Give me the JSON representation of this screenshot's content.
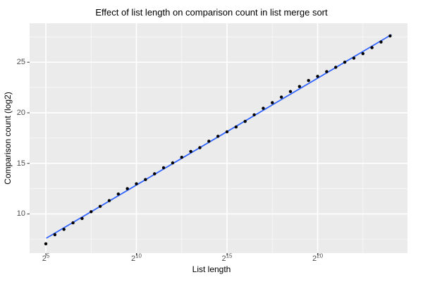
{
  "chart_data": {
    "type": "scatter",
    "title": "Effect of list length on comparison count in list merge sort",
    "x_axis": {
      "label": "List length",
      "scale": "log2",
      "tick_base": "2",
      "tick_exponents": [
        5,
        10,
        15,
        20
      ],
      "minor_exponents": [
        7.5,
        12.5,
        17.5,
        22.5
      ],
      "range_log2": [
        4.105,
        24.96
      ]
    },
    "y_axis": {
      "label": "Comparison count (log2)",
      "ticks": [
        10,
        15,
        20,
        25
      ],
      "minor_ticks": [
        7.5,
        12.5,
        17.5,
        22.5,
        27.5
      ],
      "range": [
        6.13,
        28.85
      ]
    },
    "points": {
      "x_log2": [
        5,
        5.5,
        6,
        6.5,
        7,
        7.5,
        8,
        8.5,
        9,
        9.5,
        10,
        10.5,
        11,
        11.5,
        12,
        12.5,
        13,
        13.5,
        14,
        14.5,
        15,
        15.5,
        16,
        16.5,
        17,
        17.5,
        18,
        18.5,
        19,
        19.5,
        20,
        20.5,
        21,
        21.5,
        22,
        22.5,
        23,
        23.5,
        24
      ],
      "y": [
        7.05,
        7.95,
        8.48,
        9.12,
        9.55,
        10.22,
        10.75,
        11.32,
        11.97,
        12.5,
        12.98,
        13.4,
        13.97,
        14.57,
        15.05,
        15.6,
        16.18,
        16.55,
        17.19,
        17.68,
        18.12,
        18.6,
        19.15,
        19.8,
        20.45,
        21.0,
        21.55,
        22.1,
        22.6,
        23.19,
        23.6,
        24.07,
        24.5,
        25.0,
        25.4,
        25.85,
        26.44,
        27.0,
        27.6
      ]
    },
    "fit_line": {
      "x1_log2": 5.05,
      "y1": 7.63,
      "x2_log2": 24.05,
      "y2": 27.7
    },
    "legend": null,
    "grid": "major-and-minor",
    "colors": {
      "panel_background": "#EBEBEB",
      "grid_major": "#FFFFFF",
      "grid_minor": "#FFFFFF",
      "point": "#000000",
      "fit_line": "#3366FF",
      "tick_text": "#4D4D4D",
      "axis_text": "#000000",
      "tick_mark": "#333333"
    }
  }
}
